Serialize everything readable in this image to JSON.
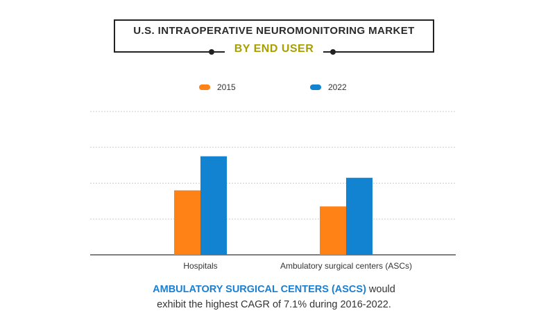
{
  "title": "U.S. INTRAOPERATIVE NEUROMONITORING MARKET",
  "subtitle": "BY END USER",
  "footnote": {
    "highlight": "AMBULATORY SURGICAL CENTERS (ASCS)",
    "line1_rest": " would",
    "line2": "exhibit the highest CAGR of 7.1% during 2016-2022."
  },
  "colors": {
    "s2015": "#ff8217",
    "s2022": "#1183d1",
    "grid": "#cccccc",
    "axis": "#555555"
  },
  "chart_data": {
    "type": "bar",
    "categories": [
      "Hospitals",
      "Ambulatory surgical centers (ASCs)"
    ],
    "series": [
      {
        "name": "2015",
        "values": [
          1.8,
          1.35
        ]
      },
      {
        "name": "2022",
        "values": [
          2.75,
          2.15
        ]
      }
    ],
    "ylim": [
      0,
      4
    ],
    "grid": true,
    "legend": "top-center",
    "title": "U.S. INTRAOPERATIVE NEUROMONITORING MARKET",
    "subtitle": "BY END USER"
  }
}
